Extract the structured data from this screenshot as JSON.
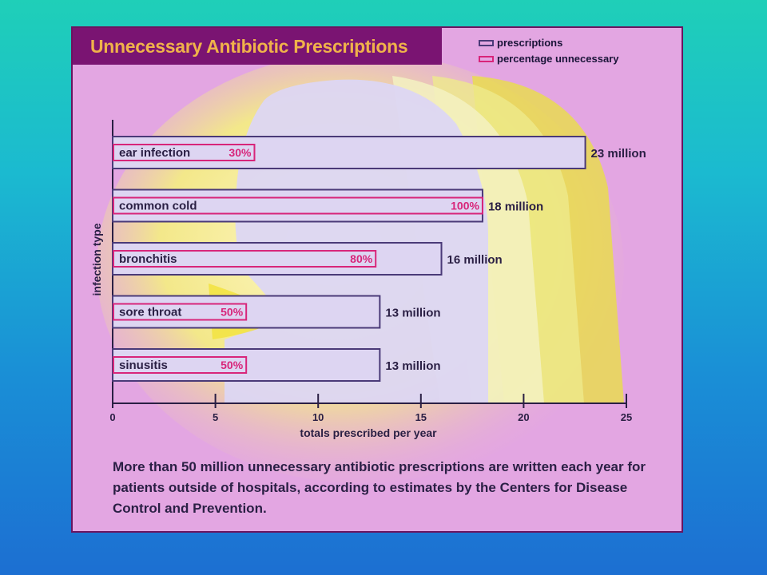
{
  "chart_data": {
    "type": "bar",
    "title": "Unnecessary Antibiotic Prescriptions",
    "xlabel": "totals prescribed per year",
    "ylabel": "infection type",
    "xlim": [
      0,
      25
    ],
    "xticks": [
      "0",
      "5",
      "10",
      "15",
      "20",
      "25"
    ],
    "legend": {
      "position": "top-right",
      "entries": [
        {
          "label": "prescriptions",
          "color": "#4a3a78"
        },
        {
          "label": "percentage unnecessary",
          "color": "#d8257a"
        }
      ]
    },
    "categories": [
      "ear infection",
      "common cold",
      "bronchitis",
      "sore throat",
      "sinusitis"
    ],
    "series": [
      {
        "name": "prescriptions",
        "values": [
          23,
          18,
          16,
          13,
          13
        ],
        "labels": [
          "23 million",
          "18 million",
          "16 million",
          "13 million",
          "13 million"
        ]
      },
      {
        "name": "percentage unnecessary",
        "values": [
          30,
          100,
          80,
          50,
          50
        ],
        "labels": [
          "30%",
          "100%",
          "80%",
          "50%",
          "50%"
        ]
      }
    ],
    "annotation": "More than 50 million unnecessary antibiotic prescriptions are written each year for patients outside of hospitals, according to estimates by the Centers for Disease Control and Prevention."
  },
  "colors": {
    "panel_background": "#e3a6e2",
    "title_bar": "#7a1472",
    "title_text": "#f0b24a",
    "bar_fill": "#ddd5f2",
    "bar_stroke": "#4a3a78",
    "percent_stroke": "#d8257a",
    "glow_yellow": "#e8e23a"
  }
}
